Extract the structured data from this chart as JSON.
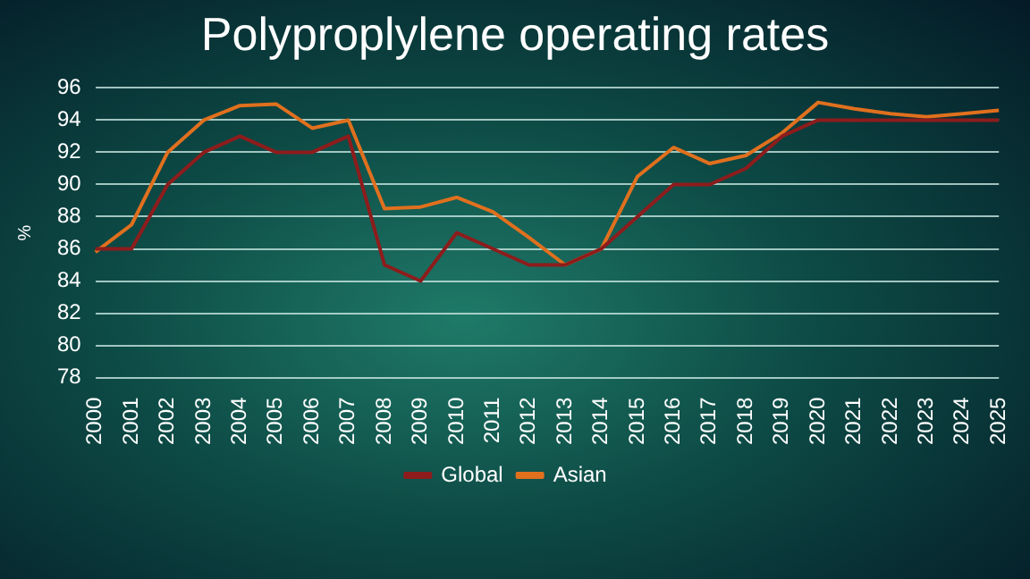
{
  "chart_data": {
    "type": "line",
    "title": "Polyproplylene operating rates",
    "ylabel": "%",
    "categories": [
      "2000",
      "2001",
      "2002",
      "2003",
      "2004",
      "2005",
      "2006",
      "2007",
      "2008",
      "2009",
      "2010",
      "2011",
      "2012",
      "2013",
      "2014",
      "2015",
      "2016",
      "2017",
      "2018",
      "2019",
      "2020",
      "2021",
      "2022",
      "2023",
      "2024",
      "2025"
    ],
    "series": [
      {
        "name": "Global",
        "color": "#8e1c1c",
        "values": [
          86,
          86,
          90,
          92,
          93,
          92,
          92,
          93,
          85,
          84,
          87,
          86,
          85,
          85,
          86,
          88,
          90,
          90,
          91,
          93,
          94,
          94,
          94,
          94,
          94,
          94
        ]
      },
      {
        "name": "Asian",
        "color": "#e0701e",
        "values": [
          85.8,
          87.5,
          92,
          94,
          94.9,
          95,
          93.5,
          94,
          88.5,
          88.6,
          89.2,
          88.3,
          86.7,
          85,
          86,
          90.5,
          92.3,
          91.3,
          91.8,
          93.2,
          95.1,
          94.7,
          94.4,
          94.2,
          94.4,
          94.6
        ]
      }
    ],
    "ylim": [
      78,
      96
    ],
    "yticks": [
      78,
      80,
      82,
      84,
      86,
      88,
      90,
      92,
      94,
      96
    ],
    "grid": "y",
    "legend": "bottom",
    "marker": "none",
    "line_style": "solid"
  }
}
